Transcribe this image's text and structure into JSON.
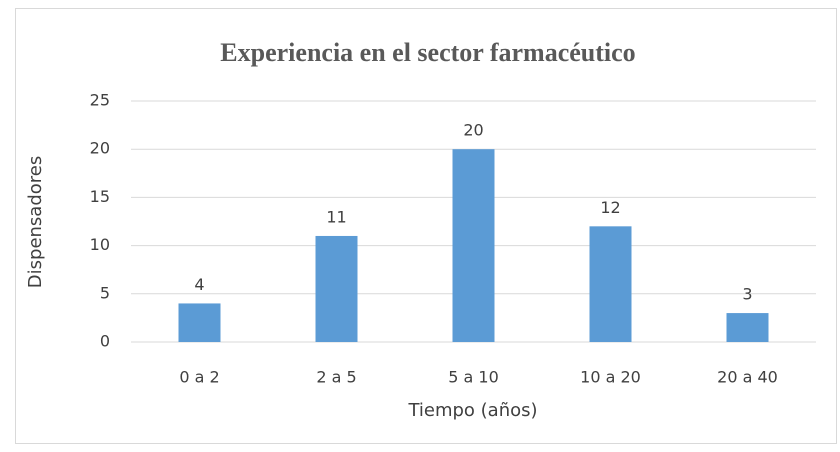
{
  "chart_data": {
    "type": "bar",
    "title": "Experiencia en el sector farmacéutico",
    "x_label": "Tiempo (años)",
    "y_label": "Dispensadores",
    "categories": [
      "0 a 2",
      "2 a 5",
      "5 a 10",
      "10 a 20",
      "20 a 40"
    ],
    "values": [
      4,
      11,
      20,
      12,
      3
    ],
    "color": "#5b9bd5",
    "ylim": [
      0,
      25
    ],
    "yticks": [
      0,
      5,
      10,
      15,
      20,
      25
    ],
    "grid": true,
    "data_labels": true
  }
}
